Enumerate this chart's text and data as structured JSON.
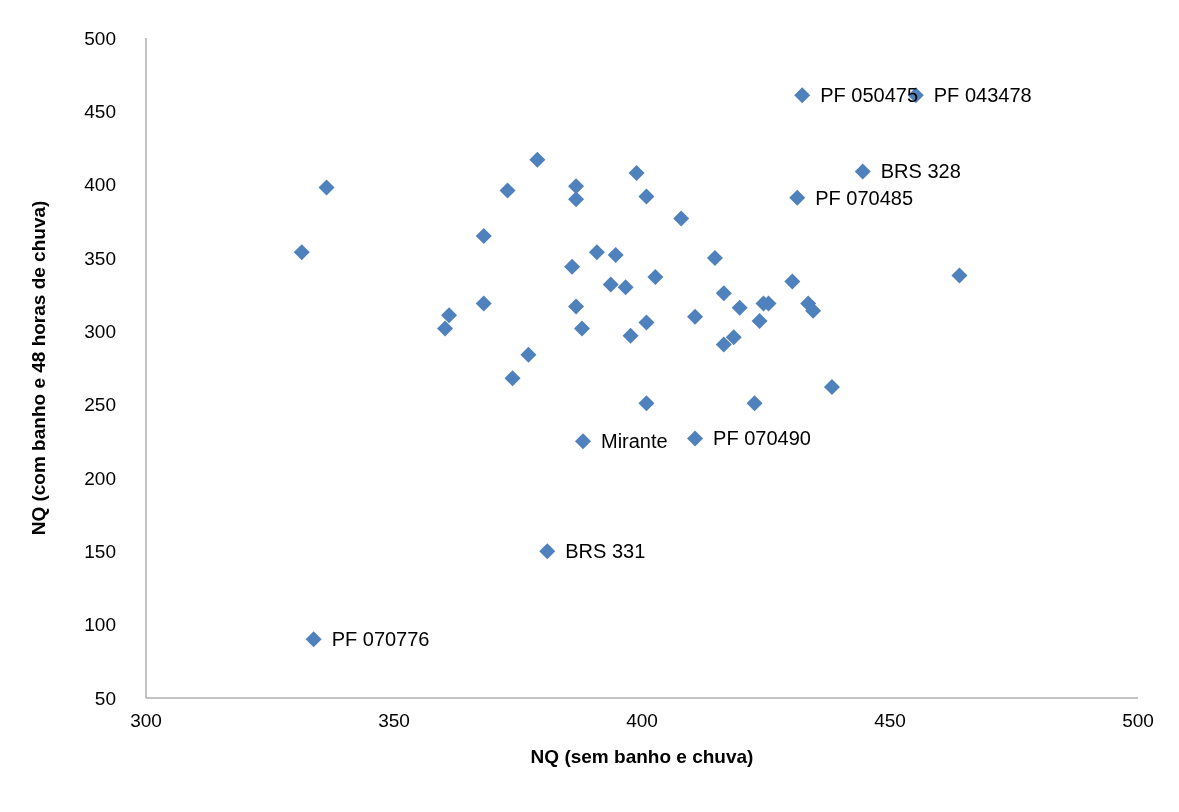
{
  "chart_data": {
    "type": "scatter",
    "xlabel": "NQ (sem banho e chuva)",
    "ylabel": "NQ (com banho e 48 horas de chuva)",
    "x": [
      331.4,
      336.4,
      333.8,
      360.3,
      361.1,
      368.1,
      368.1,
      372.9,
      373.9,
      377.1,
      378.9,
      380.9,
      385.9,
      386.7,
      386.7,
      386.7,
      387.9,
      388.1,
      390.9,
      393.7,
      394.7,
      396.7,
      397.7,
      398.9,
      400.9,
      400.9,
      400.9,
      402.7,
      407.9,
      410.7,
      410.7,
      414.7,
      416.5,
      416.5,
      418.5,
      419.7,
      422.7,
      423.7,
      424.5,
      425.5,
      430.3,
      431.3,
      432.3,
      433.5,
      434.5,
      438.3,
      444.5,
      455.2,
      464.0
    ],
    "series": [
      {
        "color": "#4f81bd",
        "values": [
          354,
          398,
          90,
          302,
          311,
          365,
          319,
          396,
          268,
          284,
          417,
          150,
          344,
          399,
          390,
          317,
          302,
          225,
          354,
          332,
          352,
          330,
          297,
          408,
          392,
          306,
          251,
          337,
          377,
          310,
          227,
          350,
          326,
          291,
          296,
          316,
          251,
          307,
          319,
          319,
          334,
          391,
          461,
          319,
          314,
          262,
          409,
          461,
          338
        ]
      }
    ],
    "xlim": [
      300,
      500
    ],
    "xticks": [
      300,
      350,
      400,
      450,
      500
    ],
    "ylim": [
      50,
      500
    ],
    "yticks": [
      50,
      100,
      150,
      200,
      250,
      300,
      350,
      400,
      450,
      500
    ],
    "grid": false,
    "legend": false,
    "marker": "diamond",
    "annotations": [
      {
        "text": "PF 070776",
        "x": 333.8,
        "y": 90
      },
      {
        "text": "BRS 331",
        "x": 380.9,
        "y": 150
      },
      {
        "text": "Mirante",
        "x": 388.1,
        "y": 225
      },
      {
        "text": "PF 070490",
        "x": 410.7,
        "y": 227
      },
      {
        "text": "PF 070485",
        "x": 431.3,
        "y": 391
      },
      {
        "text": "PF 050475",
        "x": 432.3,
        "y": 461
      },
      {
        "text": "BRS 328",
        "x": 444.5,
        "y": 409
      },
      {
        "text": "PF 043478",
        "x": 455.2,
        "y": 461
      }
    ]
  }
}
